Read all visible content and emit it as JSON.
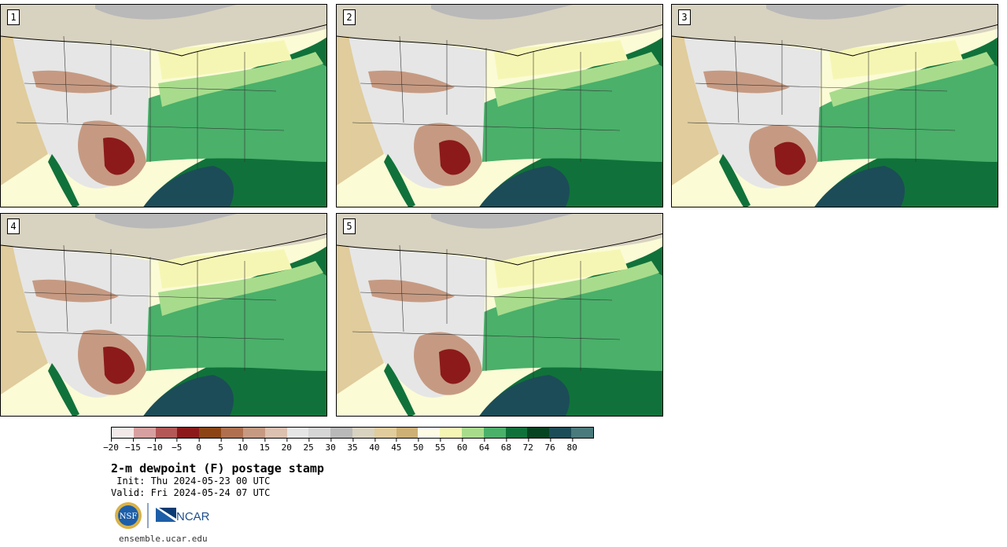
{
  "panels": [
    {
      "label": "1"
    },
    {
      "label": "2"
    },
    {
      "label": "3"
    },
    {
      "label": "4"
    },
    {
      "label": "5"
    }
  ],
  "colorbar": {
    "colors": [
      "#f4e9e9",
      "#d7a0a0",
      "#b45757",
      "#8c1a1a",
      "#8c4414",
      "#b07050",
      "#c69a82",
      "#dcc0b0",
      "#e6e6e6",
      "#d6d6d6",
      "#b9b9b9",
      "#d8d2c0",
      "#e0cc9c",
      "#cdb076",
      "#fefbe4",
      "#f6f6b4",
      "#a8dc8c",
      "#4ab06a",
      "#10723a",
      "#064422",
      "#1c4c58",
      "#4a7a7c"
    ],
    "tick_labels": [
      "−20",
      "−15",
      "−10",
      "−5",
      "0",
      "5",
      "10",
      "15",
      "20",
      "25",
      "30",
      "35",
      "40",
      "45",
      "50",
      "55",
      "60",
      "64",
      "68",
      "72",
      "76",
      "80"
    ]
  },
  "title": "2-m dewpoint (F) postage stamp",
  "init": " Init: Thu 2024-05-23 00 UTC",
  "valid": "Valid: Fri 2024-05-24 07 UTC",
  "logos": {
    "nsf": "NSF",
    "ncar": "NCAR"
  },
  "url": "ensemble.ucar.edu"
}
